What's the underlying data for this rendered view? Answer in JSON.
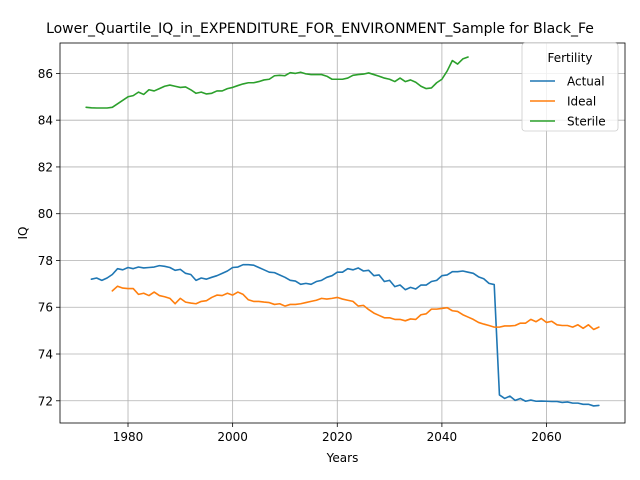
{
  "chart_data": {
    "type": "line",
    "title": "Lower_Quartile_IQ_in_EXPENDITURE_FOR_ENVIRONMENT_Sample for Black_Fe",
    "xlabel": "Years",
    "ylabel": "IQ",
    "xlim": [
      1967,
      2075
    ],
    "ylim": [
      71.05,
      87.3
    ],
    "xticks": [
      1980,
      2000,
      2020,
      2040,
      2060
    ],
    "yticks": [
      72,
      74,
      76,
      78,
      80,
      82,
      84,
      86
    ],
    "grid": true,
    "legend": {
      "title": "Fertility",
      "placement": "top-right"
    },
    "series": [
      {
        "name": "Actual",
        "color": "#1f77b4",
        "points": [
          [
            1973,
            77.2
          ],
          [
            1974,
            77.25
          ],
          [
            1975,
            77.15
          ],
          [
            1976,
            77.25
          ],
          [
            1977,
            77.4
          ],
          [
            1978,
            77.65
          ],
          [
            1979,
            77.6
          ],
          [
            1980,
            77.7
          ],
          [
            1981,
            77.65
          ],
          [
            1982,
            77.72
          ],
          [
            1983,
            77.68
          ],
          [
            1984,
            77.7
          ],
          [
            1985,
            77.72
          ],
          [
            1986,
            77.78
          ],
          [
            1987,
            77.75
          ],
          [
            1988,
            77.7
          ],
          [
            1989,
            77.58
          ],
          [
            1990,
            77.62
          ],
          [
            1991,
            77.45
          ],
          [
            1992,
            77.4
          ],
          [
            1993,
            77.15
          ],
          [
            1994,
            77.25
          ],
          [
            1995,
            77.2
          ],
          [
            1996,
            77.28
          ],
          [
            1997,
            77.35
          ],
          [
            1998,
            77.45
          ],
          [
            1999,
            77.55
          ],
          [
            2000,
            77.7
          ],
          [
            2001,
            77.72
          ],
          [
            2002,
            77.82
          ],
          [
            2003,
            77.82
          ],
          [
            2004,
            77.8
          ],
          [
            2005,
            77.7
          ],
          [
            2006,
            77.6
          ],
          [
            2007,
            77.5
          ],
          [
            2008,
            77.48
          ],
          [
            2009,
            77.38
          ],
          [
            2010,
            77.28
          ],
          [
            2011,
            77.15
          ],
          [
            2012,
            77.12
          ],
          [
            2013,
            76.98
          ],
          [
            2014,
            77.02
          ],
          [
            2015,
            76.98
          ],
          [
            2016,
            77.1
          ],
          [
            2017,
            77.15
          ],
          [
            2018,
            77.28
          ],
          [
            2019,
            77.35
          ],
          [
            2020,
            77.5
          ],
          [
            2021,
            77.5
          ],
          [
            2022,
            77.65
          ],
          [
            2023,
            77.6
          ],
          [
            2024,
            77.68
          ],
          [
            2025,
            77.55
          ],
          [
            2026,
            77.58
          ],
          [
            2027,
            77.35
          ],
          [
            2028,
            77.38
          ],
          [
            2029,
            77.1
          ],
          [
            2030,
            77.15
          ],
          [
            2031,
            76.88
          ],
          [
            2032,
            76.95
          ],
          [
            2033,
            76.75
          ],
          [
            2034,
            76.85
          ],
          [
            2035,
            76.78
          ],
          [
            2036,
            76.95
          ],
          [
            2037,
            76.95
          ],
          [
            2038,
            77.1
          ],
          [
            2039,
            77.15
          ],
          [
            2040,
            77.35
          ],
          [
            2041,
            77.38
          ],
          [
            2042,
            77.52
          ],
          [
            2043,
            77.52
          ],
          [
            2044,
            77.55
          ],
          [
            2045,
            77.5
          ],
          [
            2046,
            77.45
          ],
          [
            2047,
            77.3
          ],
          [
            2048,
            77.22
          ],
          [
            2049,
            77.02
          ],
          [
            2050,
            76.97
          ],
          [
            2051,
            72.25
          ],
          [
            2052,
            72.1
          ],
          [
            2053,
            72.2
          ],
          [
            2054,
            72.02
          ],
          [
            2055,
            72.1
          ],
          [
            2056,
            71.98
          ],
          [
            2057,
            72.03
          ],
          [
            2058,
            71.98
          ],
          [
            2059,
            71.99
          ],
          [
            2060,
            71.98
          ],
          [
            2061,
            71.97
          ],
          [
            2062,
            71.97
          ],
          [
            2063,
            71.93
          ],
          [
            2064,
            71.95
          ],
          [
            2065,
            71.9
          ],
          [
            2066,
            71.9
          ],
          [
            2067,
            71.85
          ],
          [
            2068,
            71.85
          ],
          [
            2069,
            71.78
          ],
          [
            2070,
            71.8
          ]
        ]
      },
      {
        "name": "Ideal",
        "color": "#ff7f0e",
        "points": [
          [
            1977,
            76.7
          ],
          [
            1978,
            76.9
          ],
          [
            1979,
            76.82
          ],
          [
            1980,
            76.8
          ],
          [
            1981,
            76.8
          ],
          [
            1982,
            76.55
          ],
          [
            1983,
            76.6
          ],
          [
            1984,
            76.5
          ],
          [
            1985,
            76.65
          ],
          [
            1986,
            76.5
          ],
          [
            1987,
            76.45
          ],
          [
            1988,
            76.38
          ],
          [
            1989,
            76.15
          ],
          [
            1990,
            76.38
          ],
          [
            1991,
            76.22
          ],
          [
            1992,
            76.18
          ],
          [
            1993,
            76.15
          ],
          [
            1994,
            76.25
          ],
          [
            1995,
            76.28
          ],
          [
            1996,
            76.42
          ],
          [
            1997,
            76.52
          ],
          [
            1998,
            76.5
          ],
          [
            1999,
            76.6
          ],
          [
            2000,
            76.52
          ],
          [
            2001,
            76.65
          ],
          [
            2002,
            76.55
          ],
          [
            2003,
            76.32
          ],
          [
            2004,
            76.25
          ],
          [
            2005,
            76.25
          ],
          [
            2006,
            76.22
          ],
          [
            2007,
            76.2
          ],
          [
            2008,
            76.12
          ],
          [
            2009,
            76.15
          ],
          [
            2010,
            76.05
          ],
          [
            2011,
            76.12
          ],
          [
            2012,
            76.12
          ],
          [
            2013,
            76.15
          ],
          [
            2014,
            76.2
          ],
          [
            2015,
            76.25
          ],
          [
            2016,
            76.3
          ],
          [
            2017,
            76.38
          ],
          [
            2018,
            76.35
          ],
          [
            2019,
            76.38
          ],
          [
            2020,
            76.42
          ],
          [
            2021,
            76.35
          ],
          [
            2022,
            76.3
          ],
          [
            2023,
            76.25
          ],
          [
            2024,
            76.05
          ],
          [
            2025,
            76.08
          ],
          [
            2026,
            75.9
          ],
          [
            2027,
            75.75
          ],
          [
            2028,
            75.65
          ],
          [
            2029,
            75.55
          ],
          [
            2030,
            75.55
          ],
          [
            2031,
            75.48
          ],
          [
            2032,
            75.48
          ],
          [
            2033,
            75.42
          ],
          [
            2034,
            75.5
          ],
          [
            2035,
            75.48
          ],
          [
            2036,
            75.68
          ],
          [
            2037,
            75.72
          ],
          [
            2038,
            75.92
          ],
          [
            2039,
            75.92
          ],
          [
            2040,
            75.95
          ],
          [
            2041,
            75.98
          ],
          [
            2042,
            75.85
          ],
          [
            2043,
            75.82
          ],
          [
            2044,
            75.68
          ],
          [
            2045,
            75.58
          ],
          [
            2046,
            75.48
          ],
          [
            2047,
            75.35
          ],
          [
            2048,
            75.28
          ],
          [
            2049,
            75.22
          ],
          [
            2050,
            75.15
          ],
          [
            2051,
            75.15
          ],
          [
            2052,
            75.2
          ],
          [
            2053,
            75.2
          ],
          [
            2054,
            75.22
          ],
          [
            2055,
            75.32
          ],
          [
            2056,
            75.32
          ],
          [
            2057,
            75.48
          ],
          [
            2058,
            75.38
          ],
          [
            2059,
            75.52
          ],
          [
            2060,
            75.35
          ],
          [
            2061,
            75.4
          ],
          [
            2062,
            75.25
          ],
          [
            2063,
            75.22
          ],
          [
            2064,
            75.22
          ],
          [
            2065,
            75.15
          ],
          [
            2066,
            75.25
          ],
          [
            2067,
            75.1
          ],
          [
            2068,
            75.25
          ],
          [
            2069,
            75.05
          ],
          [
            2070,
            75.15
          ]
        ]
      },
      {
        "name": "Sterile",
        "color": "#2ca02c",
        "points": [
          [
            1972,
            84.55
          ],
          [
            1973,
            84.53
          ],
          [
            1974,
            84.52
          ],
          [
            1975,
            84.52
          ],
          [
            1976,
            84.52
          ],
          [
            1977,
            84.55
          ],
          [
            1978,
            84.7
          ],
          [
            1979,
            84.85
          ],
          [
            1980,
            85.0
          ],
          [
            1981,
            85.05
          ],
          [
            1982,
            85.2
          ],
          [
            1983,
            85.1
          ],
          [
            1984,
            85.3
          ],
          [
            1985,
            85.25
          ],
          [
            1986,
            85.35
          ],
          [
            1987,
            85.45
          ],
          [
            1988,
            85.5
          ],
          [
            1989,
            85.45
          ],
          [
            1990,
            85.4
          ],
          [
            1991,
            85.42
          ],
          [
            1992,
            85.3
          ],
          [
            1993,
            85.15
          ],
          [
            1994,
            85.2
          ],
          [
            1995,
            85.12
          ],
          [
            1996,
            85.15
          ],
          [
            1997,
            85.25
          ],
          [
            1998,
            85.25
          ],
          [
            1999,
            85.35
          ],
          [
            2000,
            85.4
          ],
          [
            2001,
            85.48
          ],
          [
            2002,
            85.55
          ],
          [
            2003,
            85.6
          ],
          [
            2004,
            85.6
          ],
          [
            2005,
            85.65
          ],
          [
            2006,
            85.72
          ],
          [
            2007,
            85.75
          ],
          [
            2008,
            85.9
          ],
          [
            2009,
            85.92
          ],
          [
            2010,
            85.9
          ],
          [
            2011,
            86.03
          ],
          [
            2012,
            86.0
          ],
          [
            2013,
            86.05
          ],
          [
            2014,
            85.98
          ],
          [
            2015,
            85.95
          ],
          [
            2016,
            85.95
          ],
          [
            2017,
            85.95
          ],
          [
            2018,
            85.88
          ],
          [
            2019,
            85.75
          ],
          [
            2020,
            85.75
          ],
          [
            2021,
            85.75
          ],
          [
            2022,
            85.8
          ],
          [
            2023,
            85.92
          ],
          [
            2024,
            85.95
          ],
          [
            2025,
            85.97
          ],
          [
            2026,
            86.02
          ],
          [
            2027,
            85.95
          ],
          [
            2028,
            85.88
          ],
          [
            2029,
            85.8
          ],
          [
            2030,
            85.75
          ],
          [
            2031,
            85.65
          ],
          [
            2032,
            85.8
          ],
          [
            2033,
            85.65
          ],
          [
            2034,
            85.72
          ],
          [
            2035,
            85.62
          ],
          [
            2036,
            85.45
          ],
          [
            2037,
            85.35
          ],
          [
            2038,
            85.38
          ],
          [
            2039,
            85.6
          ],
          [
            2040,
            85.75
          ],
          [
            2041,
            86.1
          ],
          [
            2042,
            86.55
          ],
          [
            2043,
            86.4
          ],
          [
            2044,
            86.62
          ],
          [
            2045,
            86.7
          ]
        ]
      }
    ]
  }
}
